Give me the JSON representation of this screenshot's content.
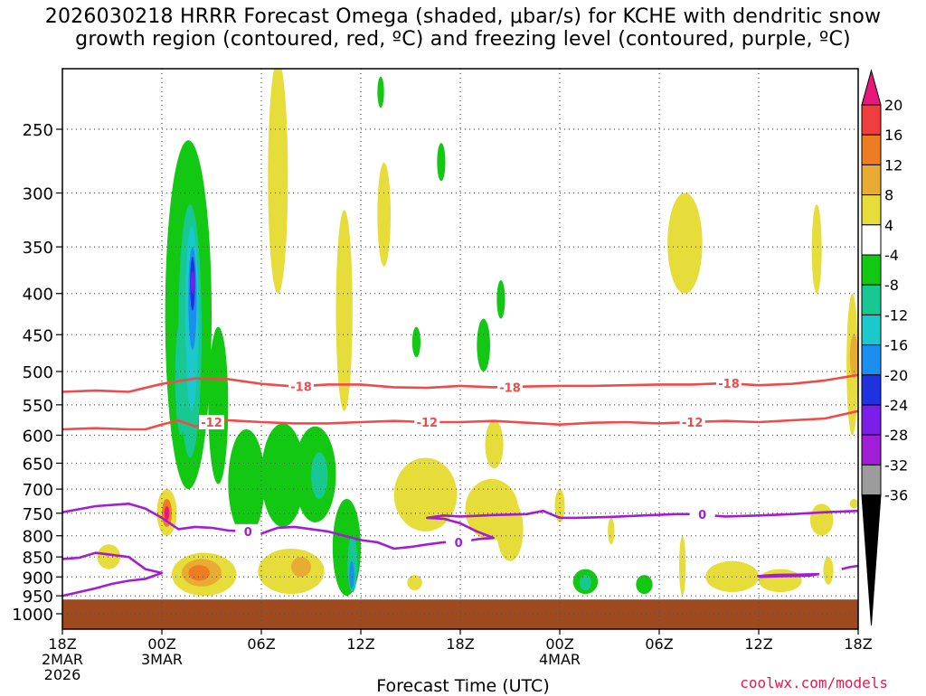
{
  "title": {
    "line1": "2026030218 HRRR Forecast Omega (shaded, μbar/s) for KCHE with dendritic snow",
    "line2": "growth region (contoured, red, ºC) and freezing level (contoured, purple, ºC)"
  },
  "xlabel": "Forecast Time (UTC)",
  "credit": "coolwx.com/models",
  "chart_data": {
    "type": "heatmap",
    "title": "2026030218 HRRR Forecast Omega (shaded, μbar/s) for KCHE with dendritic snow growth region (contoured, red, ºC) and freezing level (contoured, purple, ºC)",
    "xlabel": "Forecast Time (UTC)",
    "ylabel": "",
    "x_range_hours": [
      0,
      48
    ],
    "y_range_hPa": [
      1050,
      200
    ],
    "y_scale": "log",
    "grid": true,
    "x_ticks": [
      {
        "hour": 0,
        "lines": [
          "18Z",
          "2MAR",
          "2026"
        ]
      },
      {
        "hour": 6,
        "lines": [
          "00Z",
          "3MAR"
        ]
      },
      {
        "hour": 12,
        "lines": [
          "06Z"
        ]
      },
      {
        "hour": 18,
        "lines": [
          "12Z"
        ]
      },
      {
        "hour": 24,
        "lines": [
          "18Z"
        ]
      },
      {
        "hour": 30,
        "lines": [
          "00Z",
          "4MAR"
        ]
      },
      {
        "hour": 36,
        "lines": [
          "06Z"
        ]
      },
      {
        "hour": 42,
        "lines": [
          "12Z"
        ]
      },
      {
        "hour": 48,
        "lines": [
          "18Z"
        ]
      }
    ],
    "y_ticks": [
      250,
      300,
      350,
      400,
      450,
      500,
      550,
      600,
      650,
      700,
      750,
      800,
      850,
      900,
      950,
      1000
    ],
    "colorbar": {
      "labels": [
        "20",
        "16",
        "12",
        "8",
        "4",
        "-4",
        "-8",
        "-12",
        "-16",
        "-20",
        "-24",
        "-28",
        "-32",
        "-36"
      ],
      "bins": [
        {
          "lo": 20,
          "hi": null,
          "color": "#e8177a"
        },
        {
          "lo": 16,
          "hi": 20,
          "color": "#f03d3d"
        },
        {
          "lo": 12,
          "hi": 16,
          "color": "#ee7d22"
        },
        {
          "lo": 8,
          "hi": 12,
          "color": "#e8ac32"
        },
        {
          "lo": 4,
          "hi": 8,
          "color": "#e6dc3a"
        },
        {
          "lo": -4,
          "hi": 4,
          "color": "#ffffff"
        },
        {
          "lo": -8,
          "hi": -4,
          "color": "#13c813"
        },
        {
          "lo": -12,
          "hi": -8,
          "color": "#17c893"
        },
        {
          "lo": -16,
          "hi": -12,
          "color": "#1bc8cc"
        },
        {
          "lo": -20,
          "hi": -16,
          "color": "#1a8ff0"
        },
        {
          "lo": -24,
          "hi": -20,
          "color": "#1e32e0"
        },
        {
          "lo": -28,
          "hi": -24,
          "color": "#7a1ee8"
        },
        {
          "lo": -32,
          "hi": -28,
          "color": "#a01ed6"
        },
        {
          "lo": -36,
          "hi": -32,
          "color": "#9c9c9c"
        },
        {
          "lo": null,
          "hi": -36,
          "color": "#000000"
        }
      ]
    },
    "ground": {
      "color": "#9e4a1e",
      "top_hPa": 960
    },
    "omega_features": [
      {
        "t0": 6.2,
        "t1": 9.0,
        "p_top": 258,
        "p_bot": 700,
        "value": -6
      },
      {
        "t0": 7.0,
        "t1": 8.4,
        "p_top": 310,
        "p_bot": 640,
        "value": -10
      },
      {
        "t0": 7.4,
        "t1": 8.2,
        "p_top": 330,
        "p_bot": 560,
        "value": -14
      },
      {
        "t0": 7.6,
        "t1": 8.1,
        "p_top": 350,
        "p_bot": 470,
        "value": -18
      },
      {
        "t0": 7.7,
        "t1": 8.0,
        "p_top": 360,
        "p_bot": 420,
        "value": -22
      },
      {
        "t0": 7.78,
        "t1": 7.92,
        "p_top": 375,
        "p_bot": 400,
        "value": -26
      },
      {
        "t0": 6.8,
        "t1": 7.5,
        "p_top": 430,
        "p_bot": 600,
        "value": -10
      },
      {
        "t0": 8.8,
        "t1": 10.0,
        "p_top": 440,
        "p_bot": 690,
        "value": -6
      },
      {
        "t0": 10.0,
        "t1": 12.2,
        "p_top": 590,
        "p_bot": 800,
        "value": -6
      },
      {
        "t0": 12.0,
        "t1": 14.6,
        "p_top": 580,
        "p_bot": 780,
        "value": -6
      },
      {
        "t0": 14.0,
        "t1": 16.5,
        "p_top": 585,
        "p_bot": 770,
        "value": -6
      },
      {
        "t0": 15.0,
        "t1": 16.0,
        "p_top": 630,
        "p_bot": 720,
        "value": -10
      },
      {
        "t0": 16.3,
        "t1": 18.0,
        "p_top": 720,
        "p_bot": 950,
        "value": -6
      },
      {
        "t0": 17.2,
        "t1": 17.8,
        "p_top": 800,
        "p_bot": 940,
        "value": -12
      },
      {
        "t0": 17.3,
        "t1": 17.6,
        "p_top": 860,
        "p_bot": 930,
        "value": -18
      },
      {
        "t0": 19.0,
        "t1": 19.4,
        "p_top": 215,
        "p_bot": 235,
        "value": -6
      },
      {
        "t0": 22.6,
        "t1": 23.1,
        "p_top": 260,
        "p_bot": 290,
        "value": -6
      },
      {
        "t0": 26.2,
        "t1": 26.7,
        "p_top": 385,
        "p_bot": 430,
        "value": -6
      },
      {
        "t0": 25.0,
        "t1": 25.8,
        "p_top": 430,
        "p_bot": 500,
        "value": -6
      },
      {
        "t0": 21.1,
        "t1": 21.6,
        "p_top": 440,
        "p_bot": 480,
        "value": -6
      },
      {
        "t0": 30.8,
        "t1": 32.3,
        "p_top": 880,
        "p_bot": 945,
        "value": -6
      },
      {
        "t0": 31.2,
        "t1": 31.9,
        "p_top": 895,
        "p_bot": 935,
        "value": -12
      },
      {
        "t0": 34.6,
        "t1": 35.6,
        "p_top": 895,
        "p_bot": 945,
        "value": -6
      },
      {
        "t0": 12.4,
        "t1": 13.6,
        "p_top": 205,
        "p_bot": 400,
        "value": 5
      },
      {
        "t0": 16.5,
        "t1": 17.5,
        "p_top": 315,
        "p_bot": 560,
        "value": 5
      },
      {
        "t0": 19.0,
        "t1": 19.8,
        "p_top": 275,
        "p_bot": 370,
        "value": 5
      },
      {
        "t0": 25.5,
        "t1": 26.6,
        "p_top": 575,
        "p_bot": 660,
        "value": 5
      },
      {
        "t0": 20.0,
        "t1": 23.8,
        "p_top": 640,
        "p_bot": 790,
        "value": 5
      },
      {
        "t0": 24.3,
        "t1": 27.5,
        "p_top": 680,
        "p_bot": 810,
        "value": 5
      },
      {
        "t0": 26.2,
        "t1": 27.8,
        "p_top": 720,
        "p_bot": 860,
        "value": 5
      },
      {
        "t0": 5.7,
        "t1": 6.9,
        "p_top": 700,
        "p_bot": 800,
        "value": 5
      },
      {
        "t0": 6.0,
        "t1": 6.6,
        "p_top": 720,
        "p_bot": 780,
        "value": 14
      },
      {
        "t0": 6.15,
        "t1": 6.45,
        "p_top": 735,
        "p_bot": 765,
        "value": 22
      },
      {
        "t0": 6.6,
        "t1": 10.5,
        "p_top": 840,
        "p_bot": 950,
        "value": 5
      },
      {
        "t0": 7.2,
        "t1": 9.6,
        "p_top": 855,
        "p_bot": 925,
        "value": 10
      },
      {
        "t0": 7.6,
        "t1": 8.9,
        "p_top": 870,
        "p_bot": 910,
        "value": 14
      },
      {
        "t0": 11.8,
        "t1": 15.8,
        "p_top": 830,
        "p_bot": 945,
        "value": 5
      },
      {
        "t0": 13.8,
        "t1": 15.0,
        "p_top": 850,
        "p_bot": 900,
        "value": 10
      },
      {
        "t0": 2.1,
        "t1": 3.5,
        "p_top": 820,
        "p_bot": 880,
        "value": 5
      },
      {
        "t0": 20.8,
        "t1": 21.7,
        "p_top": 895,
        "p_bot": 935,
        "value": 5
      },
      {
        "t0": 29.7,
        "t1": 30.3,
        "p_top": 700,
        "p_bot": 770,
        "value": 5
      },
      {
        "t0": 32.9,
        "t1": 33.3,
        "p_top": 760,
        "p_bot": 820,
        "value": 5
      },
      {
        "t0": 36.5,
        "t1": 38.6,
        "p_top": 300,
        "p_bot": 400,
        "value": 5
      },
      {
        "t0": 45.2,
        "t1": 45.8,
        "p_top": 310,
        "p_bot": 400,
        "value": 5
      },
      {
        "t0": 45.1,
        "t1": 46.5,
        "p_top": 730,
        "p_bot": 800,
        "value": 5
      },
      {
        "t0": 38.8,
        "t1": 42.0,
        "p_top": 860,
        "p_bot": 940,
        "value": 5
      },
      {
        "t0": 42.0,
        "t1": 44.6,
        "p_top": 880,
        "p_bot": 940,
        "value": 5
      },
      {
        "t0": 45.9,
        "t1": 46.5,
        "p_top": 850,
        "p_bot": 920,
        "value": 5
      },
      {
        "t0": 47.5,
        "t1": 48.0,
        "p_top": 720,
        "p_bot": 740,
        "value": 5
      },
      {
        "t0": 47.3,
        "t1": 48.0,
        "p_top": 400,
        "p_bot": 600,
        "value": 5
      },
      {
        "t0": 47.5,
        "t1": 48.0,
        "p_top": 450,
        "p_bot": 510,
        "value": 10
      },
      {
        "t0": 37.2,
        "t1": 37.6,
        "p_top": 800,
        "p_bot": 950,
        "value": 5
      }
    ],
    "contours": [
      {
        "name": "-18",
        "color": "#ef4b4b",
        "label": "-18",
        "label_hours": [
          14.4,
          27.0,
          40.2
        ],
        "points": [
          [
            0,
            530
          ],
          [
            2,
            528
          ],
          [
            4,
            530
          ],
          [
            6,
            518
          ],
          [
            8,
            510
          ],
          [
            10,
            511
          ],
          [
            12,
            518
          ],
          [
            14,
            522
          ],
          [
            16,
            519
          ],
          [
            18,
            519
          ],
          [
            20,
            523
          ],
          [
            22,
            524
          ],
          [
            24,
            521
          ],
          [
            26,
            523
          ],
          [
            28,
            522
          ],
          [
            30,
            521
          ],
          [
            32,
            521
          ],
          [
            34,
            520
          ],
          [
            36,
            519
          ],
          [
            38,
            519
          ],
          [
            40,
            517
          ],
          [
            42,
            520
          ],
          [
            44,
            518
          ],
          [
            46,
            513
          ],
          [
            48,
            505
          ]
        ]
      },
      {
        "name": "-12",
        "color": "#ef4b4b",
        "label": "-12",
        "label_hours": [
          9.0,
          22.0,
          38.0
        ],
        "points": [
          [
            0,
            590
          ],
          [
            2,
            588
          ],
          [
            4,
            590
          ],
          [
            5,
            590
          ],
          [
            6,
            582
          ],
          [
            7,
            575
          ],
          [
            8,
            585
          ],
          [
            9,
            578
          ],
          [
            10,
            575
          ],
          [
            12,
            578
          ],
          [
            14,
            580
          ],
          [
            16,
            580
          ],
          [
            18,
            578
          ],
          [
            20,
            576
          ],
          [
            22,
            578
          ],
          [
            24,
            578
          ],
          [
            26,
            576
          ],
          [
            28,
            579
          ],
          [
            30,
            582
          ],
          [
            32,
            579
          ],
          [
            34,
            578
          ],
          [
            36,
            580
          ],
          [
            38,
            578
          ],
          [
            40,
            576
          ],
          [
            42,
            578
          ],
          [
            44,
            575
          ],
          [
            46,
            572
          ],
          [
            48,
            560
          ]
        ]
      },
      {
        "name": "0",
        "color": "#a21ed2",
        "label": "0",
        "label_hours": [
          11.2,
          23.9,
          38.6
        ],
        "points": [
          [
            0,
            748
          ],
          [
            2,
            735
          ],
          [
            4,
            730
          ],
          [
            5,
            740
          ],
          [
            6,
            760
          ],
          [
            7,
            785
          ],
          [
            8,
            780
          ],
          [
            9,
            782
          ],
          [
            10,
            788
          ],
          [
            11,
            790
          ],
          [
            12,
            795
          ],
          [
            13,
            782
          ],
          [
            14,
            780
          ],
          [
            15,
            785
          ],
          [
            16,
            790
          ],
          [
            17,
            800
          ],
          [
            18,
            810
          ],
          [
            19,
            815
          ],
          [
            20,
            830
          ],
          [
            21,
            826
          ],
          [
            22,
            820
          ],
          [
            23,
            815
          ],
          [
            24,
            815
          ],
          [
            25,
            808
          ],
          [
            26,
            805
          ],
          [
            25,
            790
          ],
          [
            24,
            772
          ],
          [
            23,
            762
          ],
          [
            22,
            760
          ],
          [
            23,
            755
          ],
          [
            24,
            757
          ],
          [
            26,
            754
          ],
          [
            28,
            752
          ],
          [
            29,
            745
          ],
          [
            30,
            760
          ],
          [
            31,
            760
          ],
          [
            33,
            758
          ],
          [
            35,
            755
          ],
          [
            37,
            752
          ],
          [
            38,
            752
          ],
          [
            40,
            757
          ],
          [
            42,
            755
          ],
          [
            44,
            752
          ],
          [
            46,
            748
          ],
          [
            48,
            745
          ]
        ]
      },
      {
        "name": "0-low",
        "color": "#a21ed2",
        "label": "",
        "label_hours": [],
        "points": [
          [
            0,
            855
          ],
          [
            1,
            852
          ],
          [
            2,
            840
          ],
          [
            3,
            845
          ],
          [
            4,
            850
          ],
          [
            5,
            880
          ],
          [
            6,
            890
          ],
          [
            5,
            905
          ],
          [
            4,
            910
          ],
          [
            3,
            918
          ],
          [
            2,
            930
          ],
          [
            0,
            950
          ]
        ]
      },
      {
        "name": "0-blob",
        "color": "#a21ed2",
        "label": "",
        "label_hours": [],
        "points": [
          [
            41.9,
            898
          ],
          [
            43.0,
            895
          ],
          [
            44.5,
            894
          ],
          [
            45.6,
            893
          ],
          [
            45.0,
            897
          ],
          [
            43.5,
            898
          ],
          [
            42.0,
            900
          ]
        ]
      },
      {
        "name": "0-right",
        "color": "#a21ed2",
        "label": "",
        "label_hours": [],
        "points": [
          [
            47.0,
            880
          ],
          [
            47.5,
            875
          ],
          [
            48.0,
            872
          ]
        ]
      }
    ]
  }
}
